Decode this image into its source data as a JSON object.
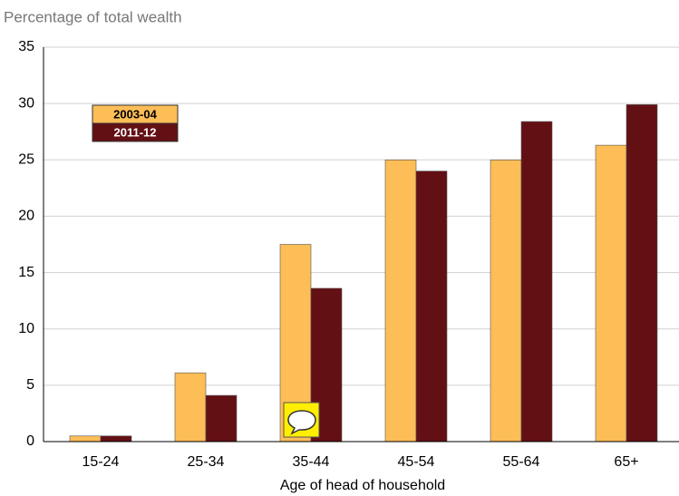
{
  "chart_data": {
    "type": "bar",
    "y_label": "Percentage of total wealth",
    "x_label": "Age of head of household",
    "categories": [
      "15-24",
      "25-34",
      "35-44",
      "45-54",
      "55-64",
      "65+"
    ],
    "series": [
      {
        "name": "2003-04",
        "color": "#fdbd57",
        "values": [
          0.5,
          6.1,
          17.5,
          25.0,
          25.0,
          26.3
        ]
      },
      {
        "name": "2011-12",
        "color": "#631015",
        "values": [
          0.5,
          4.1,
          13.6,
          24.0,
          28.4,
          29.9
        ]
      }
    ],
    "ylim": [
      0,
      35
    ],
    "yticks": [
      0,
      5,
      10,
      15,
      20,
      25,
      30,
      35
    ],
    "grid": true,
    "legend": "upper left"
  }
}
